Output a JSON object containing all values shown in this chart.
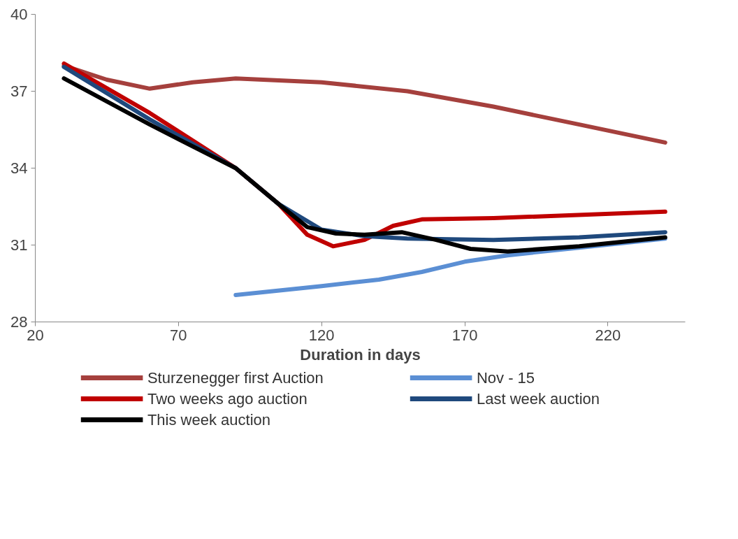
{
  "chart_data": {
    "type": "line",
    "xlabel": "Duration in days",
    "xlim": [
      20,
      247
    ],
    "xticks": [
      20,
      70,
      120,
      170,
      220
    ],
    "ylim": [
      28,
      40
    ],
    "yticks": [
      28,
      31,
      34,
      37,
      40
    ],
    "grid": false,
    "legend": "bottom",
    "marker": "none",
    "line_style": "solid",
    "series": [
      {
        "name": "Sturzenegger first Auction",
        "color": "#a5403d",
        "x": [
          30,
          45,
          60,
          75,
          90,
          120,
          150,
          180,
          210,
          240
        ],
        "values": [
          38.0,
          37.45,
          37.1,
          37.35,
          37.5,
          37.35,
          37.0,
          36.4,
          35.7,
          35.0
        ]
      },
      {
        "name": "Nov - 15",
        "color": "#5b8fd4",
        "x": [
          90,
          120,
          140,
          155,
          170,
          185,
          210,
          240
        ],
        "values": [
          29.05,
          29.4,
          29.65,
          29.95,
          30.35,
          30.6,
          30.9,
          31.25
        ]
      },
      {
        "name": "Two weeks ago auction",
        "color": "#c00000",
        "x": [
          30,
          60,
          90,
          105,
          115,
          124,
          135,
          145,
          155,
          180,
          240
        ],
        "values": [
          38.08,
          36.15,
          34.0,
          32.6,
          31.4,
          30.95,
          31.2,
          31.75,
          32.0,
          32.05,
          32.3
        ]
      },
      {
        "name": "Last week auction",
        "color": "#1f497d",
        "x": [
          30,
          60,
          90,
          105,
          120,
          135,
          150,
          180,
          210,
          240
        ],
        "values": [
          37.95,
          35.9,
          34.0,
          32.6,
          31.6,
          31.35,
          31.25,
          31.2,
          31.3,
          31.5
        ]
      },
      {
        "name": "This week auction",
        "color": "#000000",
        "x": [
          30,
          60,
          90,
          105,
          115,
          125,
          135,
          148,
          160,
          172,
          185,
          210,
          240
        ],
        "values": [
          37.5,
          35.7,
          34.0,
          32.6,
          31.7,
          31.45,
          31.4,
          31.5,
          31.2,
          30.85,
          30.75,
          30.95,
          31.3
        ]
      }
    ]
  }
}
